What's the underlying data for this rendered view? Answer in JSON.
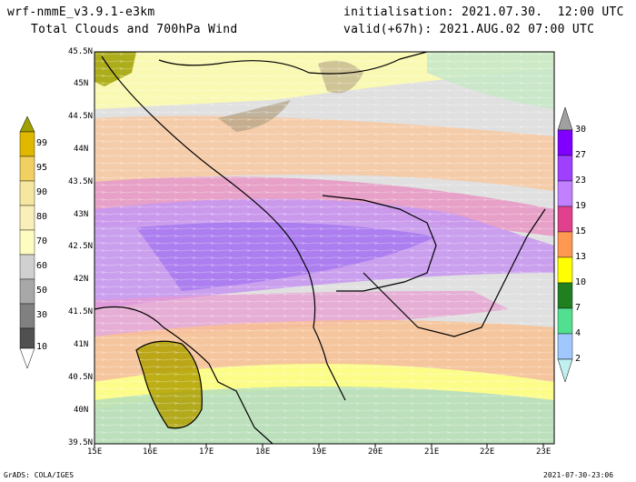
{
  "header": {
    "model": "wrf-nmmE_v3.9.1-e3km",
    "product": "Total Clouds and 700hPa Wind",
    "init": "initialisation: 2021.07.30.  12:00 UTC",
    "valid": "valid(+67h): 2021.AUG.02 07:00 UTC"
  },
  "footer": {
    "left": "GrADS: COLA/IGES",
    "right": "2021-07-30-23:06"
  },
  "map": {
    "lon_labels": [
      "15E",
      "16E",
      "17E",
      "18E",
      "19E",
      "20E",
      "21E",
      "22E",
      "23E"
    ],
    "lat_labels": [
      "45.5N",
      "45N",
      "44.5N",
      "44N",
      "43.5N",
      "43N",
      "42.5N",
      "42N",
      "41.5N",
      "41N",
      "40.5N",
      "40N",
      "39.5N"
    ],
    "lon_range": [
      15,
      23.2
    ],
    "lat_range": [
      39.5,
      45.5
    ]
  },
  "cloud_legend": {
    "labels": [
      "99",
      "95",
      "90",
      "80",
      "70",
      "60",
      "50",
      "30",
      "10"
    ],
    "colors": [
      "#a0a000",
      "#e0b800",
      "#f0d060",
      "#f5e6a0",
      "#fffcc0",
      "#a8a8a8",
      "#909090",
      "#707070",
      "#505050"
    ]
  },
  "wind_legend": {
    "labels": [
      "30",
      "27",
      "23",
      "19",
      "15",
      "13",
      "10",
      "7",
      "4",
      "2"
    ],
    "colors": [
      "#8000ff",
      "#a040ff",
      "#c080ff",
      "#e0408c",
      "#ff9850",
      "#ffff00",
      "#208020",
      "#50e090",
      "#a0c8ff",
      "#c0f0f0"
    ]
  }
}
